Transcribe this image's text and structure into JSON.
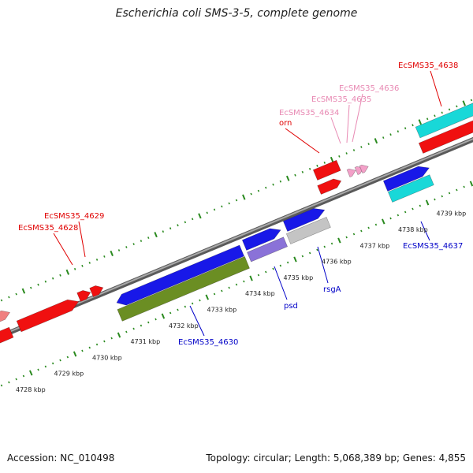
{
  "title": "Escherichia coli SMS-3-5, complete genome",
  "footer": {
    "accession": "Accession: NC_010498",
    "summary": "Topology: circular; Length: 5,068,389 bp; Genes: 4,855"
  },
  "colors": {
    "background": "#ffffff",
    "backbone": "#8c8c8c",
    "tick": "#2a8a1f",
    "label_red": "#e00000",
    "label_blue": "#0000c8",
    "label_pink": "#e889b3",
    "gene_red": "#f01010",
    "gene_blue": "#1818e8",
    "gene_cyan": "#18d8d8",
    "gene_olive": "#6b8e23",
    "gene_gray": "#c4c4c4",
    "gene_lavender": "#8a72d8",
    "gene_pink": "#f3a0c8",
    "gene_light_red": "#f08080"
  },
  "scale_labels": [
    "4728 kbp",
    "4729 kbp",
    "4730 kbp",
    "4731 kbp",
    "4732 kbp",
    "4733 kbp",
    "4734 kbp",
    "4735 kbp",
    "4736 kbp",
    "4737 kbp",
    "4738 kbp",
    "4739 kbp"
  ],
  "gene_labels": {
    "EcSMS35_4638": "EcSMS35_4638",
    "EcSMS35_4636": "EcSMS35_4636",
    "EcSMS35_4635": "EcSMS35_4635",
    "EcSMS35_4634": "EcSMS35_4634",
    "orn": "orn",
    "EcSMS35_4629": "EcSMS35_4629",
    "EcSMS35_4628": "EcSMS35_4628",
    "EcSMS35_4637": "EcSMS35_4637",
    "rsgA": "rsgA",
    "psd": "psd",
    "EcSMS35_4630": "EcSMS35_4630"
  }
}
